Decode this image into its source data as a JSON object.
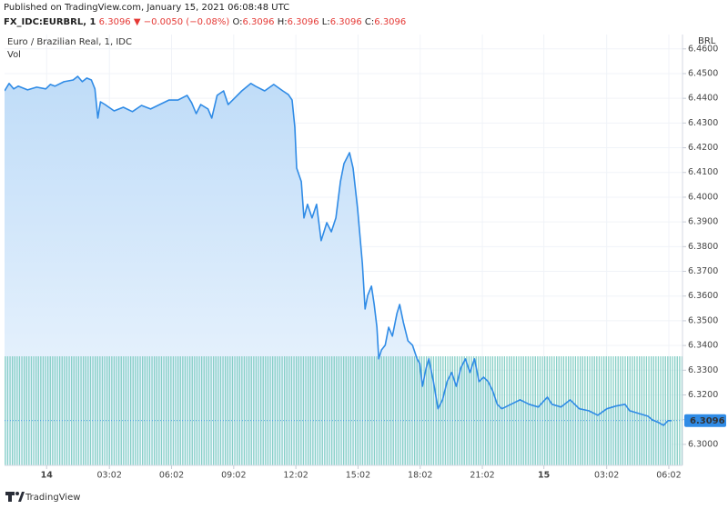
{
  "chart_data": {
    "type": "area",
    "published": "Published on TradingView.com, January 15, 2021 06:08:48 UTC",
    "quote": {
      "symbol": "FX_IDC:EURBRL, 1",
      "last": "6.3096",
      "arrow": "▼",
      "change": "−0.0050 (−0.08%)",
      "ohlc": [
        {
          "label": "O:",
          "value": "6.3096"
        },
        {
          "label": "H:",
          "value": "6.3096"
        },
        {
          "label": "L:",
          "value": "6.3096"
        },
        {
          "label": "C:",
          "value": "6.3096"
        }
      ]
    },
    "title": "Euro / Brazilian Real, 1, IDC",
    "volume_label": "Vol",
    "currency": "BRL",
    "brand": "TradingView",
    "last_price": 6.3096,
    "color": "#2f8be6",
    "x": [
      -2.03,
      -1.81,
      -1.59,
      -1.37,
      -0.92,
      -0.48,
      -0.04,
      0.18,
      0.4,
      0.84,
      1.28,
      1.5,
      1.72,
      1.94,
      2.16,
      2.33,
      2.47,
      2.6,
      2.82,
      3.26,
      3.7,
      4.14,
      4.58,
      5.02,
      5.46,
      5.9,
      6.34,
      6.78,
      7.0,
      7.22,
      7.44,
      7.79,
      7.97,
      8.23,
      8.54,
      8.76,
      8.98,
      9.42,
      9.86,
      10.08,
      10.52,
      10.96,
      11.4,
      11.67,
      11.85,
      11.98,
      12.07,
      12.29,
      12.42,
      12.59,
      12.81,
      13.03,
      13.25,
      13.52,
      13.74,
      13.96,
      14.18,
      14.35,
      14.62,
      14.79,
      15.01,
      15.24,
      15.37,
      15.5,
      15.68,
      15.81,
      15.94,
      16.03,
      16.16,
      16.34,
      16.51,
      16.69,
      16.91,
      17.04,
      17.22,
      17.44,
      17.66,
      17.88,
      18.01,
      18.14,
      18.32,
      18.45,
      18.67,
      18.89,
      19.11,
      19.33,
      19.55,
      19.77,
      19.99,
      20.21,
      20.43,
      20.65,
      20.87,
      21.09,
      21.31,
      21.53,
      21.75,
      21.97,
      22.41,
      22.85,
      23.29,
      23.73,
      24.17,
      24.39,
      24.83,
      25.27,
      25.71,
      26.16,
      26.6,
      27.04,
      27.48,
      27.92,
      28.14,
      28.58,
      29.02,
      29.24,
      29.55,
      29.77,
      29.99,
      30.16
    ],
    "values": [
      6.443,
      6.446,
      6.4438,
      6.4449,
      6.4434,
      6.4445,
      6.4438,
      6.4456,
      6.4449,
      6.4467,
      6.4474,
      6.4489,
      6.4467,
      6.4482,
      6.4474,
      6.4438,
      6.432,
      6.4386,
      6.4375,
      6.4349,
      6.4364,
      6.4346,
      6.4371,
      6.4357,
      6.4375,
      6.4393,
      6.4393,
      6.4412,
      6.4382,
      6.4338,
      6.4375,
      6.4357,
      6.432,
      6.4412,
      6.443,
      6.4375,
      6.4393,
      6.443,
      6.446,
      6.4449,
      6.443,
      6.4456,
      6.443,
      6.4415,
      6.4393,
      6.4283,
      6.4118,
      6.4063,
      6.3916,
      6.3971,
      6.3916,
      6.3971,
      6.3824,
      6.3897,
      6.386,
      6.3916,
      6.4063,
      6.4136,
      6.418,
      6.4118,
      6.3952,
      6.3732,
      6.3548,
      6.3603,
      6.364,
      6.3566,
      6.3474,
      6.3346,
      6.3382,
      6.3401,
      6.3474,
      6.3438,
      6.353,
      6.3566,
      6.3493,
      6.3419,
      6.3401,
      6.3346,
      6.3327,
      6.3235,
      6.3309,
      6.3346,
      6.3254,
      6.3144,
      6.318,
      6.3254,
      6.3291,
      6.3235,
      6.3309,
      6.3346,
      6.3291,
      6.3346,
      6.3254,
      6.3272,
      6.3254,
      6.3217,
      6.3162,
      6.3144,
      6.3162,
      6.318,
      6.3162,
      6.3151,
      6.3191,
      6.3162,
      6.3151,
      6.318,
      6.3144,
      6.3136,
      6.3118,
      6.3144,
      6.3155,
      6.3162,
      6.3136,
      6.3125,
      6.3114,
      6.3099,
      6.3088,
      6.3077,
      6.3096,
      6.3096
    ],
    "xlim": [
      -2.03,
      30.69
    ],
    "xticks": [
      {
        "value": 0,
        "label": "14"
      },
      {
        "value": 3.03,
        "label": "03:02"
      },
      {
        "value": 6.03,
        "label": "06:02"
      },
      {
        "value": 9.03,
        "label": "09:02"
      },
      {
        "value": 12.03,
        "label": "12:02"
      },
      {
        "value": 15.03,
        "label": "15:02"
      },
      {
        "value": 18.03,
        "label": "18:02"
      },
      {
        "value": 21.03,
        "label": "21:02"
      },
      {
        "value": 24,
        "label": "15"
      },
      {
        "value": 27.03,
        "label": "03:02"
      },
      {
        "value": 30.03,
        "label": "06:02"
      }
    ],
    "ylim": [
      6.2915,
      6.4658
    ],
    "yticks": [
      {
        "value": 6.3,
        "label": "6.3000"
      },
      {
        "value": 6.31,
        "label": "6.3100"
      },
      {
        "value": 6.32,
        "label": "6.3200"
      },
      {
        "value": 6.33,
        "label": "6.3300"
      },
      {
        "value": 6.34,
        "label": "6.3400"
      },
      {
        "value": 6.35,
        "label": "6.3500"
      },
      {
        "value": 6.36,
        "label": "6.3600"
      },
      {
        "value": 6.37,
        "label": "6.3700"
      },
      {
        "value": 6.38,
        "label": "6.3800"
      },
      {
        "value": 6.39,
        "label": "6.3900"
      },
      {
        "value": 6.4,
        "label": "6.4000"
      },
      {
        "value": 6.41,
        "label": "6.4100"
      },
      {
        "value": 6.42,
        "label": "6.4200"
      },
      {
        "value": 6.43,
        "label": "6.4300"
      },
      {
        "value": 6.44,
        "label": "6.4400"
      },
      {
        "value": 6.45,
        "label": "6.4500"
      },
      {
        "value": 6.46,
        "label": "6.4600"
      }
    ],
    "grid": true
  }
}
